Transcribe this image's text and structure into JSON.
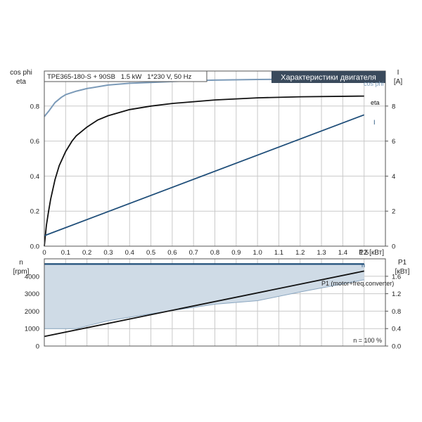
{
  "chart_data": [
    {
      "type": "line",
      "title": "Характеристики двигателя",
      "info_label": "TPE365-180-S + 90SB   1.5 kW   1*230 V, 50 Hz",
      "left_axis": {
        "label_line1": "cos phi",
        "label_line2": "eta",
        "ylim": [
          0,
          1
        ],
        "ticks": [
          "0.0",
          "0.2",
          "0.4",
          "0.6",
          "0.8"
        ]
      },
      "right_axis": {
        "label_line1": "I",
        "label_line2": "[A]",
        "ylim": [
          0,
          10
        ],
        "ticks": [
          "0",
          "2",
          "4",
          "6",
          "8"
        ]
      },
      "x_axis": {
        "label": "P2 [кВт]",
        "xlim": [
          0,
          1.6
        ],
        "ticks": [
          "0",
          "0.1",
          "0.2",
          "0.3",
          "0.4",
          "0.5",
          "0.6",
          "0.7",
          "0.8",
          "0.9",
          "1.0",
          "1.1",
          "1.2",
          "1.3",
          "1.4",
          "1.5"
        ]
      },
      "grid": true,
      "series": [
        {
          "name": "cos phi",
          "axis": "left",
          "color": "#7b9ab8",
          "x": [
            0,
            0.02,
            0.05,
            0.08,
            0.1,
            0.15,
            0.2,
            0.3,
            0.4,
            0.5,
            0.6,
            0.7,
            0.8,
            1.0,
            1.2,
            1.5
          ],
          "y": [
            0.74,
            0.77,
            0.82,
            0.85,
            0.865,
            0.885,
            0.9,
            0.92,
            0.93,
            0.935,
            0.94,
            0.945,
            0.948,
            0.952,
            0.954,
            0.955
          ]
        },
        {
          "name": "eta",
          "axis": "left",
          "color": "#111111",
          "x": [
            0,
            0.01,
            0.02,
            0.03,
            0.05,
            0.07,
            0.1,
            0.13,
            0.15,
            0.2,
            0.25,
            0.3,
            0.4,
            0.5,
            0.6,
            0.7,
            0.8,
            1.0,
            1.2,
            1.5
          ],
          "y": [
            0,
            0.12,
            0.2,
            0.27,
            0.38,
            0.46,
            0.54,
            0.6,
            0.63,
            0.68,
            0.72,
            0.745,
            0.78,
            0.8,
            0.815,
            0.825,
            0.835,
            0.847,
            0.853,
            0.857
          ]
        },
        {
          "name": "I",
          "axis": "right",
          "color": "#1f4e79",
          "x": [
            0,
            1.5
          ],
          "y": [
            0.6,
            7.5
          ]
        }
      ]
    },
    {
      "type": "area",
      "left_axis": {
        "label_line1": "n",
        "label_line2": "[rpm]",
        "ylim": [
          0,
          5000
        ],
        "ticks": [
          "0",
          "1000",
          "2000",
          "3000",
          "4000"
        ]
      },
      "right_axis": {
        "label_line1": "P1",
        "label_line2": "[кВт]",
        "ylim": [
          0,
          2.0
        ],
        "ticks": [
          "0.0",
          "0.4",
          "0.8",
          "1.2",
          "1.6"
        ]
      },
      "xlim": [
        0,
        1.6
      ],
      "grid": true,
      "annotation": "n = 100 %",
      "series": [
        {
          "name": "n",
          "axis": "left",
          "color": "#1f4e79",
          "x": [
            0,
            1.5
          ],
          "y": [
            4700,
            4700
          ]
        },
        {
          "name": "P1 (motor+freq.converter)",
          "axis": "right",
          "color": "#111111",
          "x": [
            0,
            1.5
          ],
          "y": [
            0.22,
            1.72
          ]
        }
      ],
      "area": {
        "color": "#cfdbe6",
        "edge_color": "#8aa6c0",
        "upper": {
          "x": [
            0,
            1.5
          ],
          "y": [
            4700,
            4700
          ]
        },
        "lower": {
          "x": [
            0,
            0.15,
            0.3,
            0.5,
            0.8,
            1.0,
            1.2,
            1.5
          ],
          "y": [
            1000,
            1000,
            1450,
            1850,
            2400,
            2600,
            3100,
            3800
          ]
        }
      }
    }
  ]
}
